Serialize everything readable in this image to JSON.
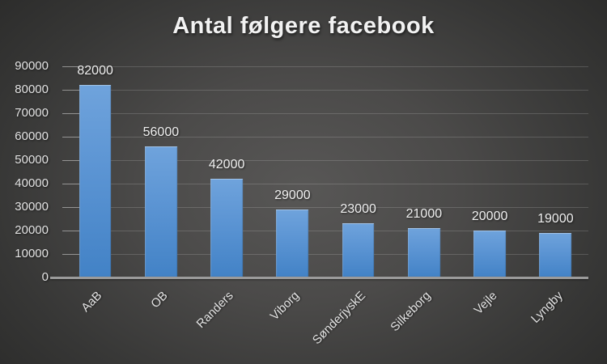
{
  "title": "Antal følgere facebook",
  "chart_data": {
    "type": "bar",
    "title": "Antal følgere facebook",
    "categories": [
      "AaB",
      "OB",
      "Randers",
      "Viborg",
      "SønderjyskE",
      "Silkeborg",
      "Vejle",
      "Lyngby"
    ],
    "values": [
      82000,
      56000,
      42000,
      29000,
      23000,
      21000,
      20000,
      19000
    ],
    "data_labels": [
      "82000",
      "56000",
      "42000",
      "29000",
      "23000",
      "21000",
      "20000",
      "19000"
    ],
    "xlabel": "",
    "ylabel": "",
    "ylim": [
      0,
      90000
    ],
    "ytick_interval": 10000,
    "ytick_labels": [
      "90000",
      "80000",
      "70000",
      "60000",
      "50000",
      "40000",
      "30000",
      "20000",
      "10000",
      "0"
    ],
    "grid": true,
    "legend_position": "none",
    "x_label_rotation_deg": -45,
    "colors": {
      "bar_top": "#6fa3dc",
      "bar_bottom": "#4282c6",
      "background_center": "#585756",
      "background_edge": "#272726",
      "axis_line": "#9b9b9b",
      "gridline": "rgba(255,255,255,0.16)",
      "text": "#e3e3e3",
      "title_text": "#f2f2f2"
    }
  }
}
